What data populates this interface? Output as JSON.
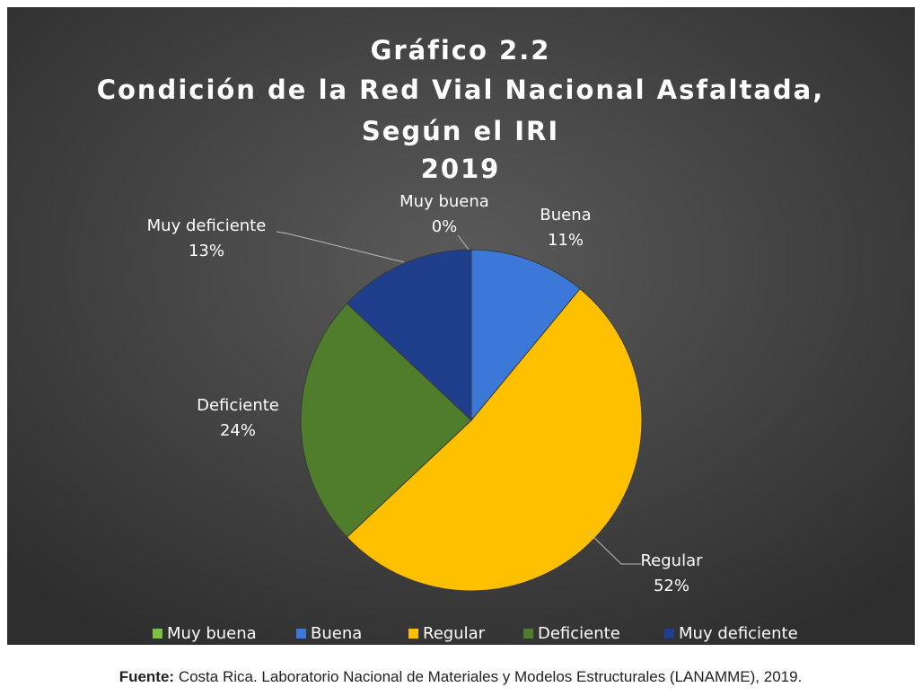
{
  "chart_data": {
    "type": "pie",
    "title": [
      "Gráfico 2.2",
      "Condición de la Red Vial Nacional Asfaltada,",
      "Según el IRI",
      "2019"
    ],
    "categories": [
      "Muy buena",
      "Buena",
      "Regular",
      "Deficiente",
      "Muy deficiente"
    ],
    "values": [
      0,
      11,
      52,
      24,
      13
    ],
    "value_labels": [
      "0%",
      "11%",
      "52%",
      "24%",
      "13%"
    ],
    "colors": [
      "#7cc242",
      "#3c78d8",
      "#ffc000",
      "#4f7d2b",
      "#1f3f8c"
    ],
    "legend": "bottom",
    "source": {
      "label": "Fuente:",
      "text": "Costa Rica. Laboratorio Nacional de Materiales y Modelos Estructurales (LANAMME), 2019."
    }
  }
}
